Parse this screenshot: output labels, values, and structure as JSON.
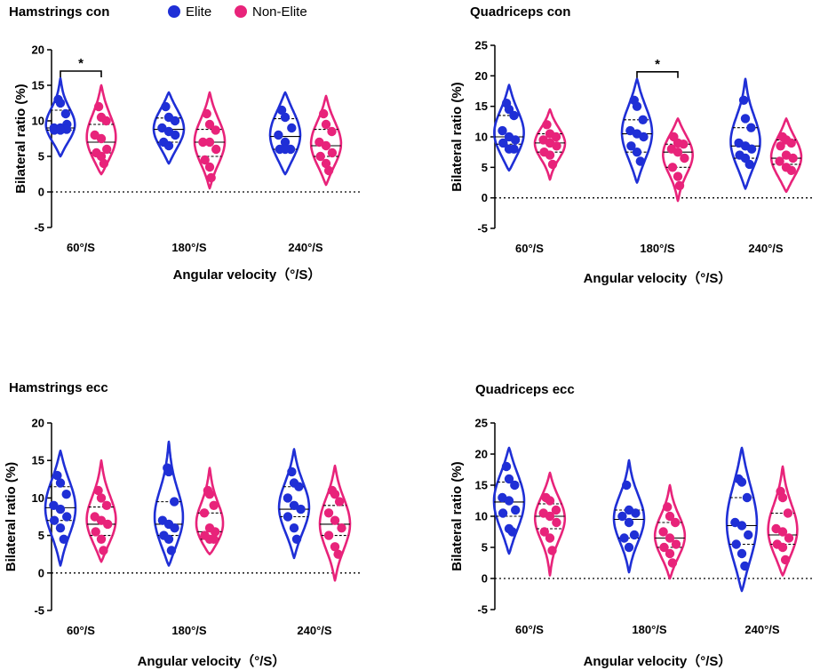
{
  "legend": {
    "items": [
      {
        "label": "Elite",
        "color": "#1f2fd6"
      },
      {
        "label": "Non-Elite",
        "color": "#e8237a"
      }
    ]
  },
  "chart_data": [
    {
      "type": "violin",
      "title": "Hamstrings  con",
      "xlabel": "Angular velocity（°/S）",
      "ylabel": "Bilateral ratio (%)",
      "ylim": [
        -5,
        20
      ],
      "yticks": [
        -5,
        0,
        5,
        10,
        15,
        20
      ],
      "categories": [
        "60°/S",
        "180°/S",
        "240°/S"
      ],
      "significance": [
        {
          "category": "60°/S",
          "label": "*"
        }
      ],
      "series": [
        {
          "name": "Elite",
          "groups": [
            {
              "min": 5,
              "max": 16,
              "median": 9,
              "q1": 8.7,
              "q3": 11.5,
              "points": [
                13,
                12.5,
                9.5,
                9,
                9,
                8.8,
                8.7,
                8.7,
                11
              ]
            },
            {
              "min": 4,
              "max": 14,
              "median": 8.8,
              "q1": 7,
              "q3": 10.4,
              "points": [
                12,
                10.5,
                10,
                9,
                8.5,
                8,
                7,
                6.5
              ]
            },
            {
              "min": 2.5,
              "max": 14,
              "median": 7.8,
              "q1": 6,
              "q3": 10.3,
              "points": [
                11.5,
                10.5,
                9,
                8,
                7,
                6,
                6,
                6
              ]
            }
          ]
        },
        {
          "name": "Non-Elite",
          "groups": [
            {
              "min": 2.5,
              "max": 15,
              "median": 7,
              "q1": 5.5,
              "q3": 9.5,
              "points": [
                12,
                10.5,
                10,
                8,
                7.5,
                6,
                5.5,
                5,
                4
              ]
            },
            {
              "min": 0.5,
              "max": 14,
              "median": 7,
              "q1": 5,
              "q3": 8.8,
              "points": [
                11,
                9.5,
                8.7,
                7,
                7,
                6,
                4.5,
                3.5,
                2
              ]
            },
            {
              "min": 1,
              "max": 13.5,
              "median": 6.5,
              "q1": 5,
              "q3": 8.8,
              "points": [
                11,
                9.5,
                8.5,
                7,
                6.5,
                5.5,
                5,
                4,
                3
              ]
            }
          ]
        }
      ]
    },
    {
      "type": "violin",
      "title": "Quadriceps  con",
      "xlabel": "Angular velocity（°/S）",
      "ylabel": "Bilateral ratio (%)",
      "ylim": [
        -5,
        25
      ],
      "yticks": [
        -5,
        0,
        5,
        10,
        15,
        20,
        25
      ],
      "categories": [
        "60°/S",
        "180°/S",
        "240°/S"
      ],
      "significance": [
        {
          "category": "180°/S",
          "label": "*"
        }
      ],
      "series": [
        {
          "name": "Elite",
          "groups": [
            {
              "min": 4.5,
              "max": 18.5,
              "median": 10,
              "q1": 8.8,
              "q3": 13.5,
              "points": [
                15.5,
                14.5,
                13.5,
                11,
                10,
                9.5,
                9,
                8,
                8
              ]
            },
            {
              "min": 2.5,
              "max": 19.5,
              "median": 10.5,
              "q1": 7.5,
              "q3": 12.8,
              "points": [
                16,
                15,
                12.8,
                11,
                10.5,
                10,
                8.5,
                7.5,
                6
              ]
            },
            {
              "min": 1.5,
              "max": 19.5,
              "median": 8.5,
              "q1": 6.5,
              "q3": 11.5,
              "points": [
                16,
                13,
                11.5,
                9,
                8.5,
                8,
                7,
                6.5,
                5.5
              ]
            }
          ]
        },
        {
          "name": "Non-Elite",
          "groups": [
            {
              "min": 3,
              "max": 14.5,
              "median": 9,
              "q1": 7.5,
              "q3": 10.5,
              "points": [
                12,
                10.5,
                10,
                9.5,
                9,
                8.5,
                7.5,
                7,
                5.5
              ]
            },
            {
              "min": -0.5,
              "max": 13,
              "median": 7.5,
              "q1": 5,
              "q3": 8.8,
              "points": [
                10,
                9,
                8.8,
                8,
                7.5,
                6.5,
                5,
                3.5,
                2
              ]
            },
            {
              "min": 1,
              "max": 13,
              "median": 6.5,
              "q1": 5.5,
              "q3": 9.5,
              "points": [
                10,
                9.5,
                9,
                8.5,
                7,
                6.5,
                6,
                5,
                4.5
              ]
            }
          ]
        }
      ]
    },
    {
      "type": "violin",
      "title": "Hamstrings  ecc",
      "xlabel": "Angular velocity（°/S）",
      "ylabel": "Bilateral ratio (%)",
      "ylim": [
        -5,
        20
      ],
      "yticks": [
        -5,
        0,
        5,
        10,
        15,
        20
      ],
      "categories": [
        "60°/S",
        "180°/S",
        "240°/S"
      ],
      "significance": [],
      "series": [
        {
          "name": "Elite",
          "groups": [
            {
              "min": 1,
              "max": 16.3,
              "median": 8.7,
              "q1": 7,
              "q3": 11.5,
              "points": [
                13,
                12,
                10.5,
                9,
                8.5,
                7.5,
                7,
                6,
                4.5
              ]
            },
            {
              "min": 1,
              "max": 17.5,
              "median": 6.5,
              "q1": 5,
              "q3": 9.5,
              "points": [
                14,
                13.5,
                9.5,
                7,
                6.5,
                6,
                5,
                4.5,
                3
              ]
            },
            {
              "min": 2,
              "max": 16.5,
              "median": 8.5,
              "q1": 7.5,
              "q3": 11.5,
              "points": [
                13.5,
                12,
                11.5,
                10,
                9,
                8.5,
                7.5,
                6,
                4.5
              ]
            }
          ]
        },
        {
          "name": "Non-Elite",
          "groups": [
            {
              "min": 1.5,
              "max": 15,
              "median": 6.5,
              "q1": 5,
              "q3": 8.8,
              "points": [
                11,
                10,
                9,
                7.5,
                7,
                6.5,
                5.5,
                4.5,
                3
              ]
            },
            {
              "min": 2.5,
              "max": 14,
              "median": 5.5,
              "q1": 4.5,
              "q3": 8,
              "points": [
                11,
                10.5,
                9,
                8,
                6,
                5.5,
                5,
                4.5,
                4.5
              ]
            },
            {
              "min": -1,
              "max": 14.3,
              "median": 6.5,
              "q1": 5,
              "q3": 9,
              "points": [
                11,
                10.5,
                9.5,
                8,
                7,
                6,
                5,
                3.5,
                2.5
              ]
            }
          ]
        }
      ]
    },
    {
      "type": "violin",
      "title": "Quadriceps  ecc",
      "xlabel": "Angular velocity（°/S）",
      "ylabel": "Bilateral ratio (%)",
      "ylim": [
        -5,
        25
      ],
      "yticks": [
        -5,
        0,
        5,
        10,
        15,
        20,
        25
      ],
      "categories": [
        "60°/S",
        "180°/S",
        "240°/S"
      ],
      "significance": [],
      "series": [
        {
          "name": "Elite",
          "groups": [
            {
              "min": 4,
              "max": 21,
              "median": 12.3,
              "q1": 10,
              "q3": 15.5,
              "points": [
                18,
                16,
                15,
                13,
                12.5,
                11,
                10.5,
                8,
                7.5
              ]
            },
            {
              "min": 1,
              "max": 19,
              "median": 9.5,
              "q1": 6.5,
              "q3": 11,
              "points": [
                15,
                11,
                10.5,
                10,
                9,
                7,
                6.5,
                5
              ]
            },
            {
              "min": -2,
              "max": 21,
              "median": 8.5,
              "q1": 5.5,
              "q3": 13,
              "points": [
                16,
                15.5,
                13,
                9,
                8.5,
                7,
                5.5,
                4,
                2
              ]
            }
          ]
        },
        {
          "name": "Non-Elite",
          "groups": [
            {
              "min": 0.5,
              "max": 17,
              "median": 10,
              "q1": 8,
              "q3": 12,
              "points": [
                13,
                12.5,
                11,
                10.5,
                10,
                9,
                7.5,
                6.5,
                4.5
              ]
            },
            {
              "min": 0,
              "max": 15,
              "median": 6.5,
              "q1": 5,
              "q3": 9,
              "points": [
                11.5,
                10,
                9,
                7.5,
                6.5,
                5.5,
                5,
                4,
                2.5
              ]
            },
            {
              "min": 0.5,
              "max": 18,
              "median": 7,
              "q1": 5.5,
              "q3": 10.5,
              "points": [
                14,
                13,
                10.5,
                8,
                7.5,
                6.5,
                5.5,
                5,
                3
              ]
            }
          ]
        }
      ]
    }
  ]
}
